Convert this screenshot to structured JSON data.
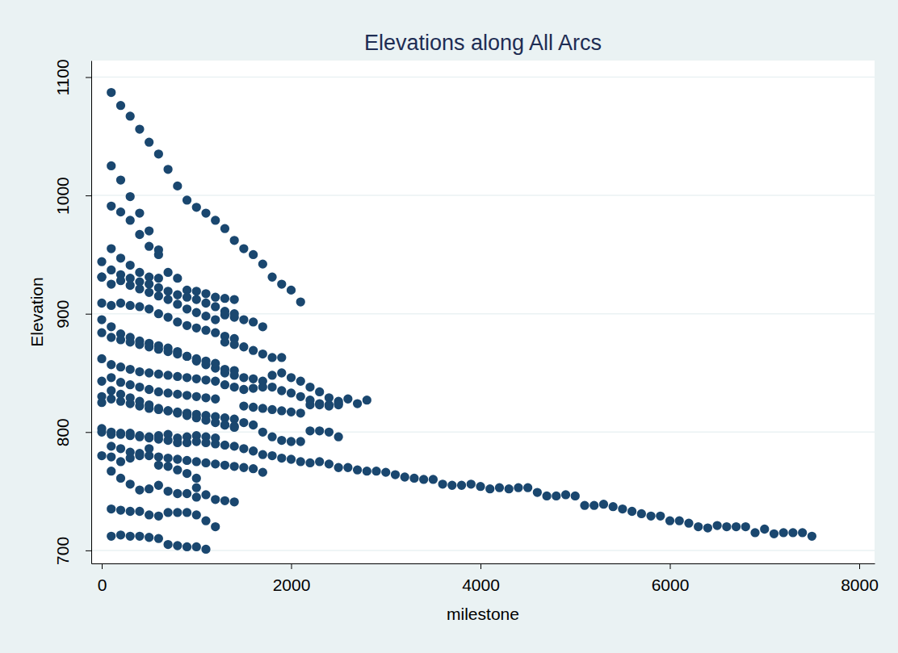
{
  "chart_data": {
    "type": "scatter",
    "title": "Elevations along All Arcs",
    "x_label": "milestone",
    "y_label": "Elevation",
    "color": "#1a476f",
    "marker": "circle",
    "grid": true,
    "xlim": [
      -111,
      8162
    ],
    "ylim": [
      689,
      1114
    ],
    "xticks": [
      0,
      2000,
      4000,
      6000,
      8000
    ],
    "yticks": [
      700,
      800,
      900,
      1000,
      1100
    ],
    "series": [
      {
        "x": [
          100,
          200,
          300,
          400,
          500,
          600,
          700,
          800,
          900,
          1000,
          1100,
          1200,
          1300,
          1400,
          1500,
          1600,
          1700,
          1800,
          1900,
          2000,
          2100
        ],
        "values": [
          1087,
          1076,
          1067,
          1056,
          1045,
          1035,
          1022,
          1008,
          996,
          990,
          985,
          979,
          972,
          962,
          955,
          950,
          942,
          931,
          925,
          920,
          910
        ]
      },
      {
        "x": [
          100,
          200,
          300,
          400,
          500,
          600
        ],
        "values": [
          1025,
          1013,
          999,
          985,
          970,
          954
        ]
      },
      {
        "x": [
          100,
          200,
          300,
          400,
          500,
          600
        ],
        "values": [
          991,
          986,
          979,
          967,
          957,
          950
        ]
      },
      {
        "x": [
          0,
          100,
          200,
          300,
          400,
          500,
          600,
          700,
          800,
          900,
          1000,
          1100,
          1200,
          1300,
          1400
        ],
        "values": [
          944,
          955,
          947,
          941,
          935,
          931,
          930,
          935,
          930,
          920,
          919,
          917,
          914,
          913,
          912
        ]
      },
      {
        "x": [
          0,
          100,
          200,
          300,
          400,
          500,
          600,
          700,
          800,
          900,
          1000,
          1100,
          1200,
          1300,
          1400
        ],
        "values": [
          931,
          937,
          933,
          930,
          927,
          925,
          922,
          919,
          916,
          914,
          912,
          909,
          906,
          902,
          900
        ]
      },
      {
        "x": [
          0,
          100,
          200,
          300,
          400,
          500,
          600,
          700,
          800,
          900,
          1000,
          1100,
          1200,
          1300,
          1400,
          1500,
          1600,
          1700
        ],
        "values": [
          931,
          925,
          928,
          924,
          921,
          918,
          915,
          912,
          908,
          904,
          901,
          898,
          895,
          899,
          897,
          895,
          893,
          889
        ]
      },
      {
        "x": [
          0,
          100,
          200,
          300,
          400,
          500,
          600,
          700,
          800,
          900,
          1000,
          1100,
          1200,
          1300,
          1400
        ],
        "values": [
          909,
          907,
          909,
          907,
          906,
          904,
          900,
          897,
          893,
          890,
          888,
          886,
          884,
          881,
          879
        ]
      },
      {
        "x": [
          0,
          100,
          200,
          300,
          400,
          500,
          600,
          700,
          800,
          900,
          1000,
          1100,
          1200,
          1300,
          1400
        ],
        "values": [
          895,
          889,
          883,
          880,
          877,
          875,
          873,
          871,
          868,
          864,
          860,
          857,
          854,
          853,
          852
        ]
      },
      {
        "x": [
          0,
          100,
          200,
          300,
          400,
          500,
          600,
          700,
          800,
          900,
          1000,
          1100,
          1200,
          1300,
          1400,
          1500,
          1600,
          1700,
          1800,
          1900
        ],
        "values": [
          884,
          880,
          878,
          876,
          874,
          872,
          870,
          868,
          866,
          864,
          862,
          860,
          858,
          876,
          874,
          872,
          869,
          866,
          863,
          863
        ]
      },
      {
        "x": [
          0,
          100,
          200,
          300,
          400,
          500,
          600,
          700,
          800,
          900,
          1000,
          1100,
          1200,
          1300,
          1400,
          1500,
          1600,
          1700,
          1800,
          1900,
          2000,
          2100,
          2200,
          2300,
          2400,
          2500
        ],
        "values": [
          862,
          857,
          855,
          853,
          851,
          850,
          849,
          848,
          847,
          846,
          845,
          844,
          843,
          850,
          848,
          846,
          845,
          843,
          848,
          850,
          846,
          843,
          838,
          834,
          829,
          826
        ]
      },
      {
        "x": [
          0,
          100,
          200,
          300,
          400,
          500,
          600,
          700,
          800,
          900,
          1000,
          1100,
          1200,
          1300,
          1400,
          1500,
          1600,
          1700,
          1800,
          1900,
          2000,
          2100,
          2200,
          2300,
          2400,
          2500,
          2600,
          2700,
          2800
        ],
        "values": [
          843,
          846,
          842,
          840,
          838,
          836,
          834,
          833,
          832,
          831,
          830,
          829,
          828,
          840,
          838,
          836,
          837,
          838,
          838,
          835,
          833,
          830,
          827,
          824,
          823,
          824,
          828,
          824,
          827
        ]
      },
      {
        "x": [
          0,
          100,
          200,
          300,
          400,
          500,
          600,
          700,
          800,
          900,
          1000,
          1100,
          1200,
          1300,
          1400,
          1500,
          1600,
          1700,
          1800,
          1900,
          2000,
          2100,
          2200,
          2300,
          2400,
          2500
        ],
        "values": [
          825,
          828,
          826,
          824,
          822,
          820,
          819,
          818,
          817,
          816,
          815,
          814,
          813,
          812,
          811,
          822,
          821,
          820,
          819,
          818,
          817,
          816,
          823,
          823,
          822,
          823
        ]
      },
      {
        "x": [
          0,
          100,
          200,
          300,
          400,
          500,
          600,
          700,
          800,
          900,
          1000,
          1100,
          1200,
          1300,
          1400
        ],
        "values": [
          830,
          835,
          832,
          829,
          826,
          823,
          820,
          818,
          816,
          814,
          812,
          810,
          808,
          806,
          805
        ]
      },
      {
        "x": [
          0,
          100,
          200,
          300,
          400,
          500,
          600,
          700,
          800,
          900,
          1000,
          1100,
          1200,
          1300,
          1400,
          1500,
          1600,
          1700,
          1800,
          1900,
          2000,
          2100
        ],
        "values": [
          803,
          800,
          798,
          799,
          797,
          796,
          797,
          798,
          795,
          796,
          797,
          796,
          795,
          806,
          804,
          808,
          806,
          800,
          796,
          793,
          792,
          792
        ]
      },
      {
        "x": [
          2200,
          2300,
          2400,
          2500
        ],
        "values": [
          801,
          801,
          800,
          796
        ]
      },
      {
        "x": [
          0,
          100,
          200,
          300,
          400,
          500,
          600,
          700,
          800,
          900,
          1000,
          1100,
          1200,
          1300,
          1400,
          1500,
          1600,
          1700,
          1800,
          1900,
          2000,
          2100,
          2200,
          2300,
          2400,
          2500,
          2600,
          2700,
          2800,
          2900,
          3000,
          3100,
          3200,
          3300,
          3400,
          3500,
          3600,
          3700,
          3800,
          3900,
          4000,
          4100,
          4200,
          4300,
          4400,
          4500,
          4600,
          4700,
          4800,
          4900,
          5000,
          5100,
          5200,
          5300,
          5400,
          5500,
          5600,
          5700,
          5800,
          5900,
          6000,
          6100,
          6200,
          6300,
          6400,
          6500,
          6600,
          6700,
          6800,
          6900,
          7000,
          7100,
          7200,
          7300,
          7400,
          7500
        ],
        "values": [
          800,
          798,
          799,
          797,
          796,
          795,
          794,
          793,
          791,
          791,
          792,
          791,
          790,
          789,
          788,
          786,
          784,
          781,
          780,
          778,
          777,
          775,
          774,
          775,
          773,
          770,
          770,
          768,
          767,
          767,
          766,
          764,
          762,
          761,
          760,
          760,
          756,
          755,
          755,
          756,
          754,
          752,
          753,
          752,
          753,
          753,
          749,
          746,
          746,
          747,
          746,
          738,
          738,
          739,
          737,
          735,
          733,
          731,
          729,
          729,
          725,
          725,
          723,
          720,
          719,
          721,
          720,
          720,
          720,
          715,
          718,
          714,
          715,
          715,
          715,
          712
        ]
      },
      {
        "x": [
          0,
          100,
          200,
          300,
          400,
          500,
          600,
          700,
          800,
          900,
          1000,
          1100,
          1200,
          1300,
          1400,
          1500,
          1600,
          1700
        ],
        "values": [
          780,
          788,
          786,
          783,
          782,
          780,
          779,
          778,
          777,
          776,
          775,
          774,
          773,
          772,
          771,
          770,
          769,
          766
        ]
      },
      {
        "x": [
          100,
          200,
          300,
          400,
          500,
          600,
          700,
          800,
          900,
          1000
        ],
        "values": [
          767,
          761,
          756,
          751,
          752,
          755,
          750,
          748,
          748,
          745
        ]
      },
      {
        "x": [
          100,
          200,
          300,
          400,
          500,
          600,
          700,
          800,
          900,
          1000
        ],
        "values": [
          779,
          775,
          778,
          780,
          786,
          772,
          771,
          768,
          765,
          761
        ]
      },
      {
        "x": [
          1000,
          1100,
          1200,
          1300,
          1400
        ],
        "values": [
          753,
          747,
          743,
          742,
          741
        ]
      },
      {
        "x": [
          100,
          200,
          300,
          400,
          500,
          600,
          700,
          800,
          900,
          1000,
          1100,
          1200
        ],
        "values": [
          735,
          734,
          733,
          733,
          730,
          729,
          732,
          732,
          732,
          730,
          725,
          720
        ]
      },
      {
        "x": [
          100,
          200,
          300,
          400,
          500,
          600,
          700,
          800,
          900,
          1000,
          1100
        ],
        "values": [
          712,
          713,
          712,
          712,
          711,
          710,
          705,
          704,
          703,
          703,
          701
        ]
      }
    ]
  }
}
